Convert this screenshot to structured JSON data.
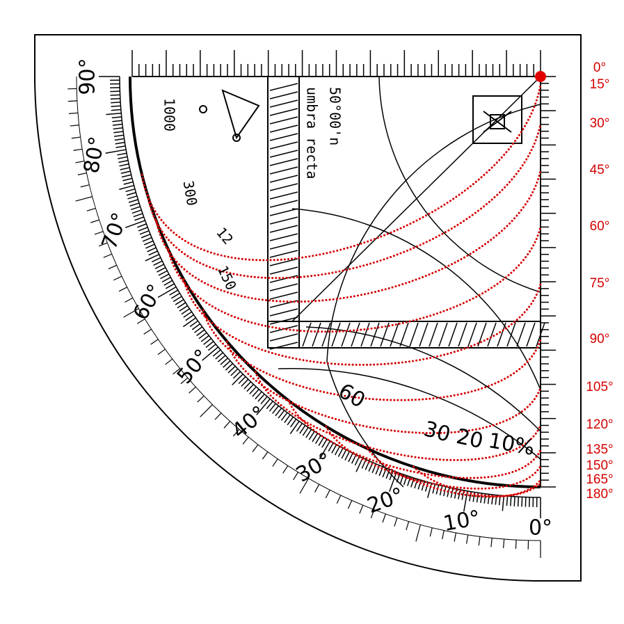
{
  "hour_labels": [
    "0°",
    "15°",
    "30°",
    "45°",
    "60°",
    "75°",
    "90°",
    "105°",
    "120°",
    "135°",
    "150°",
    "165°",
    "180°"
  ],
  "degree_labels": [
    "0°",
    "10°",
    "20°",
    "30°",
    "40°",
    "50°",
    "60°",
    "70°",
    "80°",
    "90°"
  ],
  "latitude": "50°00'n",
  "umbra": "umbra recta",
  "scale_labels": [
    "1000",
    "300",
    "150",
    "12"
  ],
  "arc_labels": [
    "60",
    "30",
    "20",
    "10%"
  ]
}
